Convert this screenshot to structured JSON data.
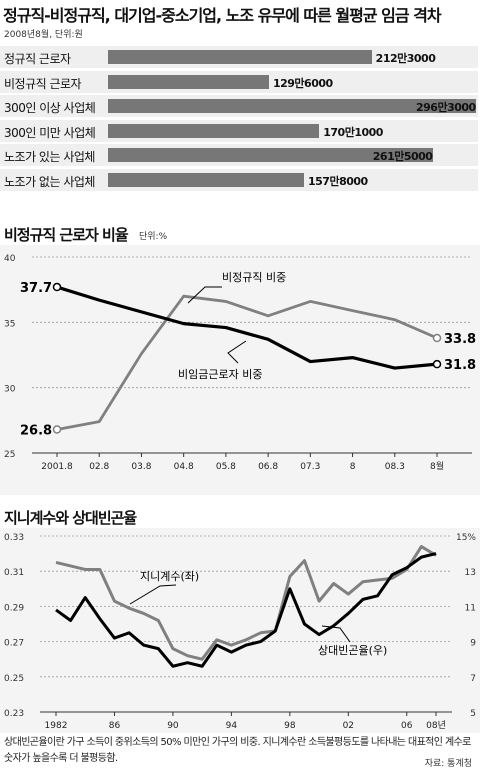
{
  "section1": {
    "title": "정규직-비정규직, 대기업-중소기업, 노조 유무에 따른 월평균 임금 격차",
    "note": "2008년8월, 단위:원",
    "chart_data": {
      "type": "bar",
      "categories": [
        "정규직 근로자",
        "비정규직 근로자",
        "300인 이상 사업체",
        "300인 미만 사업체",
        "노조가 있는 사업체",
        "노조가 없는 사업체"
      ],
      "values": [
        2123000,
        1296000,
        2963000,
        1701000,
        2615000,
        1578000
      ],
      "value_labels": [
        "212만3000",
        "129만6000",
        "296만3000",
        "170만1000",
        "261만5000",
        "157만8000"
      ]
    }
  },
  "section2": {
    "title": "비정규직 근로자 비율",
    "unit": "단위:%",
    "chart_data": {
      "type": "line",
      "x": [
        "2001.8",
        "02.8",
        "03.8",
        "04.8",
        "05.8",
        "06.8",
        "07.3",
        "8",
        "08.3",
        "8월"
      ],
      "ylim": [
        25,
        40
      ],
      "yticks": [
        "25",
        "30",
        "35",
        "40"
      ],
      "series": [
        {
          "name": "비정규직 비중",
          "values": [
            26.8,
            27.4,
            32.6,
            37.0,
            36.6,
            35.5,
            36.6,
            35.9,
            35.2,
            33.8
          ]
        },
        {
          "name": "비임금근로자 비중",
          "values": [
            37.7,
            36.7,
            35.8,
            34.9,
            34.6,
            33.7,
            32.0,
            32.3,
            31.5,
            31.8
          ]
        }
      ],
      "annotations": {
        "start_gray": "26.8",
        "start_black": "37.7",
        "end_gray": "33.8",
        "end_black": "31.8"
      }
    }
  },
  "section3": {
    "title": "지니계수와 상대빈곤율",
    "chart_data": {
      "type": "line",
      "x": [
        1982,
        1983,
        1984,
        1985,
        1986,
        1987,
        1988,
        1989,
        1990,
        1991,
        1992,
        1993,
        1994,
        1995,
        1996,
        1997,
        1998,
        1999,
        2000,
        2001,
        2002,
        2003,
        2004,
        2005,
        2006,
        2007,
        2008
      ],
      "xticks": [
        "1982",
        "86",
        "90",
        "94",
        "98",
        "02",
        "06",
        "08년"
      ],
      "left_axis": {
        "ticks": [
          "0.23",
          "0.25",
          "0.27",
          "0.29",
          "0.31",
          "0.33"
        ],
        "ylim": [
          0.23,
          0.33
        ]
      },
      "right_axis": {
        "ticks": [
          "5",
          "7",
          "9",
          "11",
          "13",
          "15%"
        ],
        "ylim": [
          5,
          15
        ]
      },
      "series": [
        {
          "name": "지니계수(좌)",
          "axis": "left",
          "values": [
            0.315,
            0.313,
            0.311,
            0.311,
            0.293,
            0.289,
            0.286,
            0.282,
            0.266,
            0.262,
            0.26,
            0.271,
            0.268,
            0.271,
            0.275,
            0.276,
            0.307,
            0.316,
            0.293,
            0.303,
            0.297,
            0.304,
            0.305,
            0.306,
            0.311,
            0.324,
            0.319
          ]
        },
        {
          "name": "상대빈곤율(우)",
          "axis": "right",
          "values": [
            10.8,
            10.2,
            11.5,
            10.3,
            9.2,
            9.5,
            8.8,
            8.6,
            7.6,
            7.8,
            7.6,
            8.8,
            8.4,
            8.8,
            9.0,
            9.6,
            12.0,
            10.0,
            9.4,
            9.9,
            10.6,
            11.4,
            11.6,
            12.8,
            13.2,
            13.8,
            14.0
          ]
        }
      ]
    }
  },
  "footnote": "상대빈곤율이란 가구 소득이 중위소득의 50% 미만인 가구의 비중. 지니계수란 소득불평등도를 나타내는 대표적인 계수로 숫자가 높을수록 더 불평등함.",
  "source": "자료: 통계청",
  "colors": {
    "bar_fill": "#777777",
    "bar_bg": "#efefef",
    "gray_line": "#808080",
    "black_line": "#000000"
  }
}
